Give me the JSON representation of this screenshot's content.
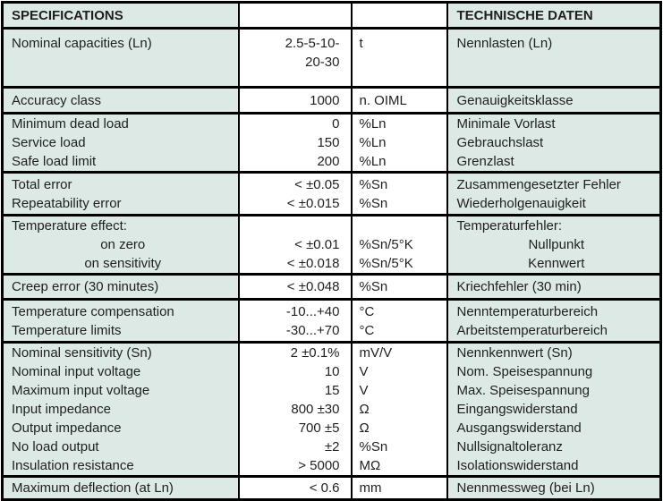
{
  "table": {
    "header": {
      "en": "SPECIFICATIONS",
      "de": "TECHNISCHE DATEN"
    },
    "rows": [
      {
        "en": [
          "Nominal capacities (Ln)"
        ],
        "value": [
          "2.5-5-10-",
          "20-30"
        ],
        "unit": [
          "t"
        ],
        "de": [
          "Nennlasten (Ln)"
        ],
        "valign": "top"
      },
      {
        "en": [
          "Accuracy class"
        ],
        "value": [
          "1000"
        ],
        "unit": [
          "n. OIML"
        ],
        "de": [
          "Genauigkeitsklasse"
        ]
      },
      {
        "en": [
          "Minimum dead load",
          "Service load",
          "Safe load limit"
        ],
        "value": [
          "0",
          "150",
          "200"
        ],
        "unit": [
          "%Ln",
          "%Ln",
          "%Ln"
        ],
        "de": [
          "Minimale Vorlast",
          "Gebrauchslast",
          "Grenzlast"
        ]
      },
      {
        "en": [
          "Total error",
          "Repeatability error"
        ],
        "value": [
          "< ±0.05",
          "< ±0.015"
        ],
        "unit": [
          "%Sn",
          "%Sn"
        ],
        "de": [
          "Zusammengesetzter Fehler",
          "Wiederholgenauigkeit"
        ]
      },
      {
        "en": [
          "Temperature effect:",
          "on zero",
          "on sensitivity"
        ],
        "value": [
          "",
          "< ±0.01",
          "< ±0.018"
        ],
        "unit": [
          "",
          "%Sn/5°K",
          "%Sn/5°K"
        ],
        "de": [
          "Temperaturfehler:",
          "Nullpunkt",
          "Kennwert"
        ],
        "sub_center": true
      },
      {
        "en": [
          "Creep error (30 minutes)"
        ],
        "value": [
          "< ±0.048"
        ],
        "unit": [
          "%Sn"
        ],
        "de": [
          "Kriechfehler (30 min)"
        ]
      },
      {
        "en": [
          "Temperature compensation",
          "Temperature limits"
        ],
        "value": [
          "-10...+40",
          "-30...+70"
        ],
        "unit": [
          "°C",
          "°C"
        ],
        "de": [
          "Nenntemperaturbereich",
          "Arbeitstemperaturbereich"
        ]
      },
      {
        "en": [
          "Nominal sensitivity (Sn)",
          "Nominal input voltage",
          "Maximum input voltage",
          "Input impedance",
          "Output impedance",
          "No load output",
          "Insulation resistance"
        ],
        "value": [
          "2 ±0.1%",
          "10",
          "15",
          "800 ±30",
          "700 ±5",
          "±2",
          "> 5000"
        ],
        "unit": [
          "mV/V",
          "V",
          "V",
          "Ω",
          "Ω",
          "%Sn",
          "MΩ"
        ],
        "de": [
          "Nennkennwert (Sn)",
          "Nom. Speisespannung",
          "Max. Speisespannung",
          "Eingangswiderstand",
          "Ausgangswiderstand",
          "Nullsignaltoleranz",
          "Isolationswiderstand"
        ]
      },
      {
        "en": [
          "Maximum deflection (at Ln)"
        ],
        "value": [
          "< 0.6"
        ],
        "unit": [
          "mm"
        ],
        "de": [
          "Nennmessweg (bei Ln)"
        ]
      }
    ]
  },
  "colors": {
    "cell_bg": "#dde9e4",
    "value_bg": "#ffffff",
    "border": "#000000",
    "text": "#1f1f1f"
  }
}
